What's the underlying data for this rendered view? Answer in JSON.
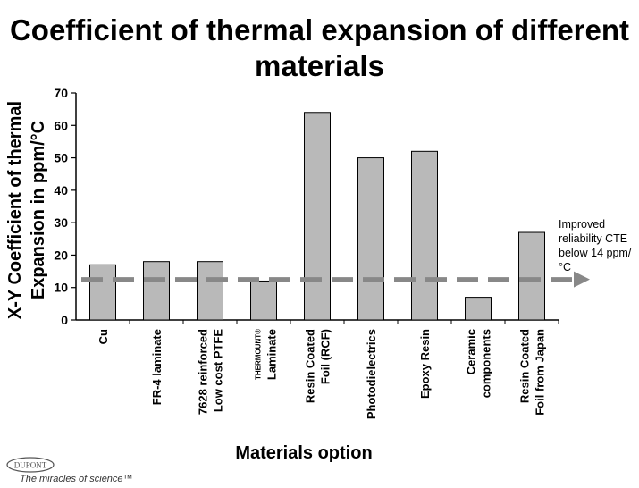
{
  "title": "Coefficient of thermal expansion of different materials",
  "annotation": "Improved reliability CTE below 14 ppm/°C",
  "logo": {
    "brand": "DUPONT",
    "tagline": "The miracles of science™"
  },
  "colors": {
    "bar_fill": "#b9b9b9",
    "bar_stroke": "#000000",
    "arrow": "#888888"
  },
  "chart_data": {
    "type": "bar",
    "title": "Coefficient of thermal expansion of different materials",
    "xlabel": "Materials option",
    "ylabel": "X-Y Coefficient of thermal Expansion in ppm/°C",
    "ylim": [
      0,
      70
    ],
    "yticks": [
      0,
      10,
      20,
      30,
      40,
      50,
      60,
      70
    ],
    "grid": false,
    "categories": [
      [
        "Cu"
      ],
      [
        "FR-4 laminate"
      ],
      [
        "7628 reinforced",
        "Low cost PTFE"
      ],
      [
        "THERMOUNT®",
        "Laminate"
      ],
      [
        "Resin Coated",
        "Foil (RCF)"
      ],
      [
        "Photodielectrics"
      ],
      [
        "Epoxy Resin"
      ],
      [
        "Ceramic",
        "components"
      ],
      [
        "Resin Coated",
        "Foil from Japan"
      ]
    ],
    "values": [
      17,
      18,
      18,
      12,
      64,
      50,
      52,
      7,
      27
    ],
    "reference_line": {
      "y": 12.5,
      "style": "dashed",
      "arrow": "right",
      "label": "Improved reliability CTE below 14 ppm/°C"
    }
  }
}
